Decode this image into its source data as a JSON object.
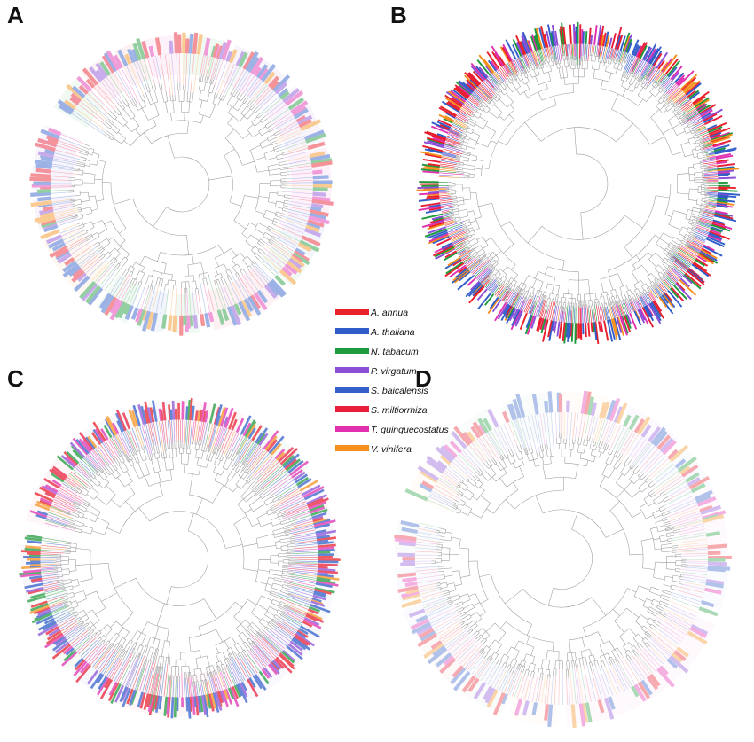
{
  "panels": [
    {
      "letter": "A",
      "tree_style": "sparse-pastel"
    },
    {
      "letter": "B",
      "tree_style": "dense-saturated"
    },
    {
      "letter": "C",
      "tree_style": "dense-pastel"
    },
    {
      "letter": "D",
      "tree_style": "sparse-light"
    }
  ],
  "legend": {
    "items": [
      {
        "name": "A. annua",
        "color": "#e8202a"
      },
      {
        "name": "A. thaliana",
        "color": "#2f5cc8"
      },
      {
        "name": "N. tabacum",
        "color": "#1f9a3c"
      },
      {
        "name": "P. virgatum",
        "color": "#8a4fd6"
      },
      {
        "name": "S. baicalensis",
        "color": "#3560c9"
      },
      {
        "name": "S. miltiorrhiza",
        "color": "#e81e3a"
      },
      {
        "name": "T. quinquecostatus",
        "color": "#e030b0"
      },
      {
        "name": "V. vinifera",
        "color": "#f5901e"
      }
    ]
  }
}
